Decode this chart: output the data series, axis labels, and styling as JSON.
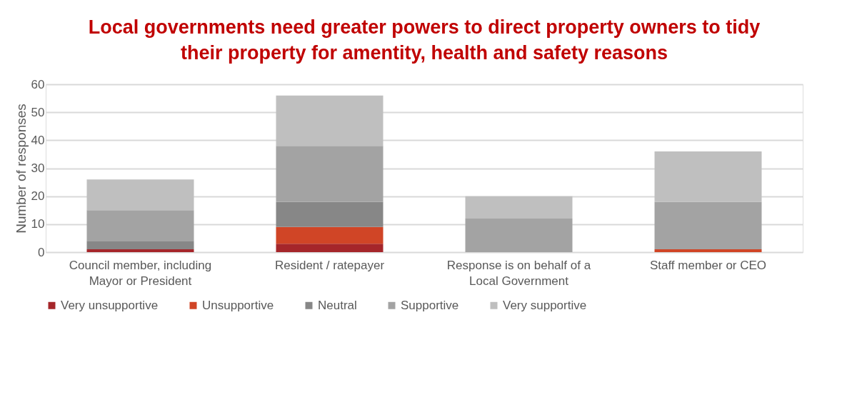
{
  "chart_data": {
    "type": "bar",
    "stacked": true,
    "title": "Local governments need greater powers to direct property owners to tidy their property for amentity, health and safety reasons",
    "ylabel": "Number of responses",
    "categories": [
      "Council member, including Mayor or President",
      "Resident / ratepayer",
      "Response is on behalf of a Local Government",
      "Staff member or CEO"
    ],
    "series": [
      {
        "name": "Very unsupportive",
        "color": "#a5262a",
        "values": [
          1,
          3,
          0,
          0
        ]
      },
      {
        "name": "Unsupportive",
        "color": "#d04526",
        "values": [
          0,
          6,
          0,
          1
        ]
      },
      {
        "name": "Neutral",
        "color": "#878787",
        "values": [
          3,
          9,
          0,
          0
        ]
      },
      {
        "name": "Supportive",
        "color": "#a3a3a3",
        "values": [
          11,
          20,
          12,
          17
        ]
      },
      {
        "name": "Very supportive",
        "color": "#bfbfbf",
        "values": [
          11,
          18,
          8,
          18
        ]
      }
    ],
    "ylim": [
      0,
      60
    ],
    "yticks": [
      0,
      10,
      20,
      30,
      40,
      50,
      60
    ],
    "grid": "y",
    "legend": "bottom"
  }
}
